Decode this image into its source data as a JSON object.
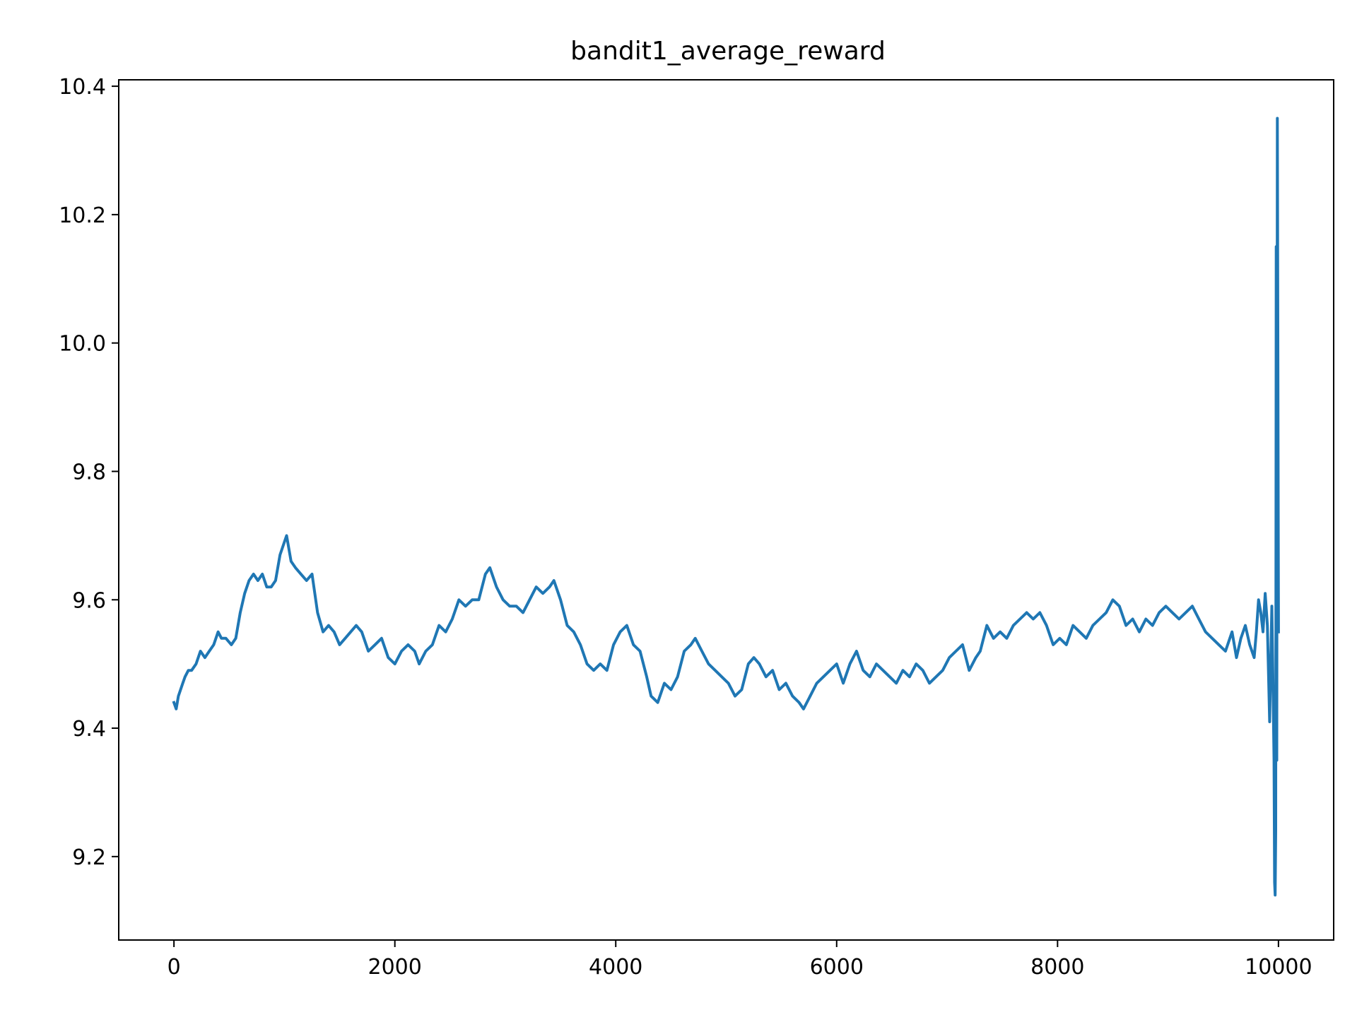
{
  "chart_data": {
    "type": "line",
    "title": "bandit1_average_reward",
    "xlabel": "",
    "ylabel": "",
    "xlim": [
      -500,
      10500
    ],
    "ylim": [
      9.07,
      10.41
    ],
    "x_ticks": [
      0,
      2000,
      4000,
      6000,
      8000,
      10000
    ],
    "x_tick_labels": [
      "0",
      "2000",
      "4000",
      "6000",
      "8000",
      "10000"
    ],
    "y_ticks": [
      9.2,
      9.4,
      9.6,
      9.8,
      10.0,
      10.2,
      10.4
    ],
    "y_tick_labels": [
      "9.2",
      "9.4",
      "9.6",
      "9.8",
      "10.0",
      "10.2",
      "10.4"
    ],
    "grid": false,
    "legend": "none",
    "line_color": "#1f77b4",
    "series": [
      {
        "x": [
          0,
          20,
          40,
          60,
          80,
          100,
          130,
          160,
          200,
          240,
          280,
          320,
          360,
          400,
          430,
          470,
          520,
          560,
          600,
          640,
          680,
          720,
          760,
          800,
          840,
          880,
          920,
          960,
          1000,
          1020,
          1060,
          1100,
          1150,
          1200,
          1250,
          1300,
          1350,
          1400,
          1450,
          1500,
          1550,
          1600,
          1650,
          1700,
          1760,
          1820,
          1880,
          1940,
          2000,
          2060,
          2120,
          2180,
          2220,
          2280,
          2340,
          2400,
          2460,
          2520,
          2580,
          2640,
          2700,
          2760,
          2820,
          2860,
          2920,
          2980,
          3040,
          3100,
          3160,
          3220,
          3280,
          3340,
          3400,
          3440,
          3500,
          3560,
          3620,
          3680,
          3740,
          3800,
          3860,
          3920,
          3980,
          4040,
          4100,
          4160,
          4220,
          4280,
          4320,
          4380,
          4440,
          4500,
          4560,
          4620,
          4680,
          4720,
          4780,
          4840,
          4900,
          4960,
          5020,
          5080,
          5140,
          5200,
          5250,
          5300,
          5360,
          5420,
          5480,
          5540,
          5600,
          5660,
          5700,
          5760,
          5820,
          5880,
          5940,
          6000,
          6060,
          6120,
          6180,
          6240,
          6300,
          6360,
          6420,
          6480,
          6540,
          6600,
          6660,
          6720,
          6780,
          6840,
          6900,
          6960,
          7020,
          7080,
          7140,
          7200,
          7260,
          7300,
          7360,
          7420,
          7480,
          7540,
          7600,
          7660,
          7720,
          7780,
          7840,
          7900,
          7960,
          8020,
          8080,
          8140,
          8200,
          8260,
          8320,
          8380,
          8440,
          8500,
          8560,
          8620,
          8680,
          8740,
          8800,
          8860,
          8920,
          8980,
          9040,
          9100,
          9160,
          9220,
          9280,
          9340,
          9400,
          9460,
          9520,
          9580,
          9620,
          9660,
          9700,
          9740,
          9780,
          9800,
          9820,
          9840,
          9860,
          9880,
          9900,
          9920,
          9940,
          9950,
          9960,
          9965,
          9970,
          9975,
          9980,
          9985,
          9990,
          9995,
          10000
        ],
        "y": [
          9.44,
          9.43,
          9.45,
          9.46,
          9.47,
          9.48,
          9.49,
          9.49,
          9.5,
          9.52,
          9.51,
          9.52,
          9.53,
          9.55,
          9.54,
          9.54,
          9.53,
          9.54,
          9.58,
          9.61,
          9.63,
          9.64,
          9.63,
          9.64,
          9.62,
          9.62,
          9.63,
          9.67,
          9.69,
          9.7,
          9.66,
          9.65,
          9.64,
          9.63,
          9.64,
          9.58,
          9.55,
          9.56,
          9.55,
          9.53,
          9.54,
          9.55,
          9.56,
          9.55,
          9.52,
          9.53,
          9.54,
          9.51,
          9.5,
          9.52,
          9.53,
          9.52,
          9.5,
          9.52,
          9.53,
          9.56,
          9.55,
          9.57,
          9.6,
          9.59,
          9.6,
          9.6,
          9.64,
          9.65,
          9.62,
          9.6,
          9.59,
          9.59,
          9.58,
          9.6,
          9.62,
          9.61,
          9.62,
          9.63,
          9.6,
          9.56,
          9.55,
          9.53,
          9.5,
          9.49,
          9.5,
          9.49,
          9.53,
          9.55,
          9.56,
          9.53,
          9.52,
          9.48,
          9.45,
          9.44,
          9.47,
          9.46,
          9.48,
          9.52,
          9.53,
          9.54,
          9.52,
          9.5,
          9.49,
          9.48,
          9.47,
          9.45,
          9.46,
          9.5,
          9.51,
          9.5,
          9.48,
          9.49,
          9.46,
          9.47,
          9.45,
          9.44,
          9.43,
          9.45,
          9.47,
          9.48,
          9.49,
          9.5,
          9.47,
          9.5,
          9.52,
          9.49,
          9.48,
          9.5,
          9.49,
          9.48,
          9.47,
          9.49,
          9.48,
          9.5,
          9.49,
          9.47,
          9.48,
          9.49,
          9.51,
          9.52,
          9.53,
          9.49,
          9.51,
          9.52,
          9.56,
          9.54,
          9.55,
          9.54,
          9.56,
          9.57,
          9.58,
          9.57,
          9.58,
          9.56,
          9.53,
          9.54,
          9.53,
          9.56,
          9.55,
          9.54,
          9.56,
          9.57,
          9.58,
          9.6,
          9.59,
          9.56,
          9.57,
          9.55,
          9.57,
          9.56,
          9.58,
          9.59,
          9.58,
          9.57,
          9.58,
          9.59,
          9.57,
          9.55,
          9.54,
          9.53,
          9.52,
          9.55,
          9.51,
          9.54,
          9.56,
          9.53,
          9.51,
          9.55,
          9.6,
          9.58,
          9.55,
          9.61,
          9.56,
          9.41,
          9.59,
          9.48,
          9.35,
          9.16,
          9.14,
          9.24,
          10.15,
          9.35,
          10.35,
          9.97,
          9.55
        ]
      }
    ]
  }
}
